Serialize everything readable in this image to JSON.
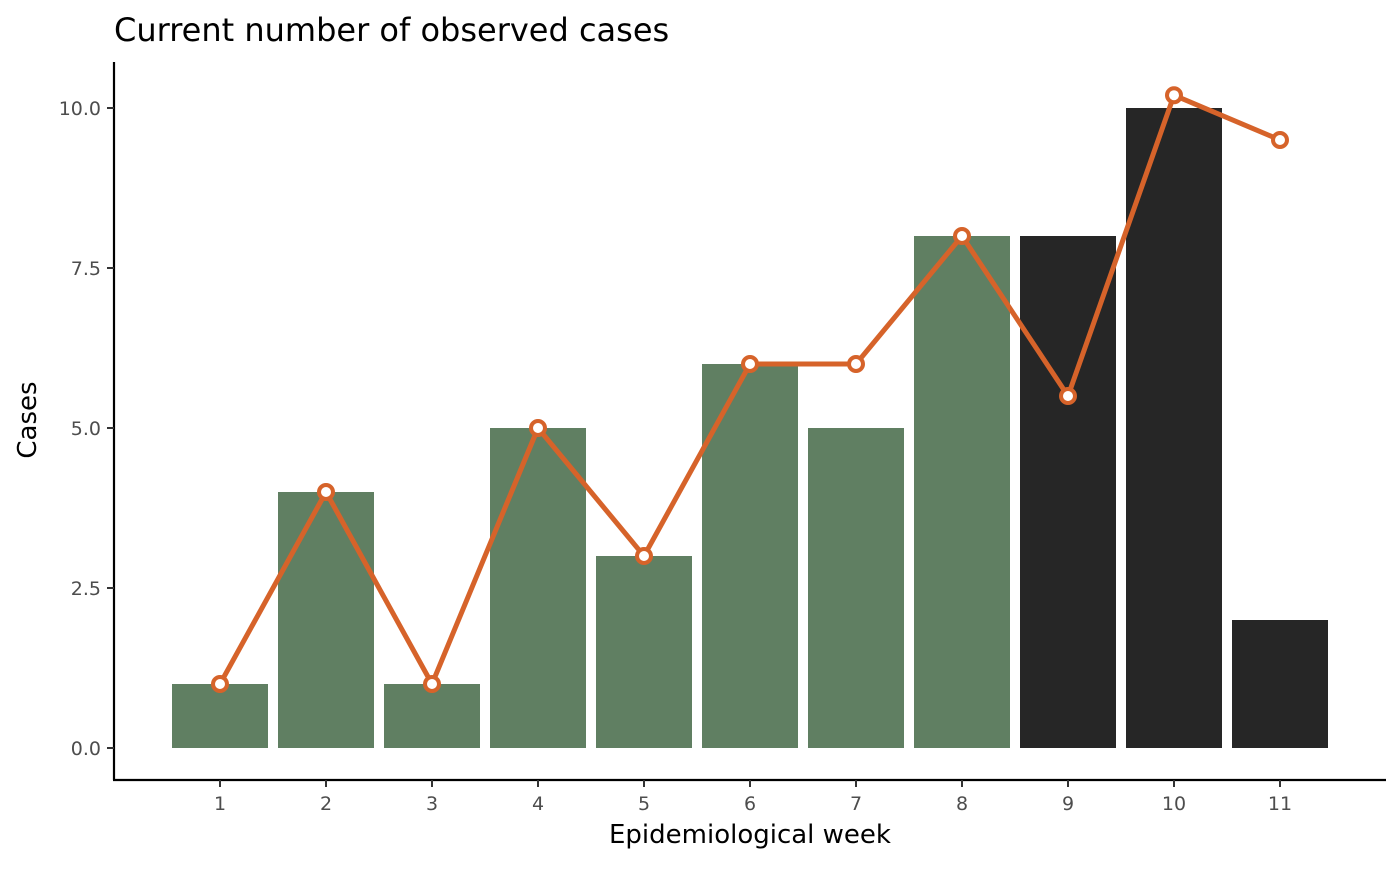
{
  "chart_data": {
    "type": "bar",
    "title": "Current number of observed cases",
    "xlabel": "Epidemiological week",
    "ylabel": "Cases",
    "categories": [
      "1",
      "2",
      "3",
      "4",
      "5",
      "6",
      "7",
      "8",
      "9",
      "10",
      "11"
    ],
    "ylim": [
      0,
      10.7
    ],
    "yticks": [
      "0.0",
      "2.5",
      "5.0",
      "7.5",
      "10.0"
    ],
    "grid": false,
    "series": [
      {
        "type": "bar",
        "values": [
          1,
          4,
          1,
          5,
          3,
          6,
          5,
          8,
          8,
          10,
          2
        ],
        "colors": [
          "#607f62",
          "#607f62",
          "#607f62",
          "#607f62",
          "#607f62",
          "#607f62",
          "#607f62",
          "#607f62",
          "#262626",
          "#262626",
          "#262626"
        ]
      },
      {
        "type": "line",
        "values": [
          1,
          4,
          1,
          5,
          3,
          6,
          6,
          8,
          5.5,
          10.2,
          9.5
        ],
        "color": "#d6632a"
      }
    ]
  }
}
